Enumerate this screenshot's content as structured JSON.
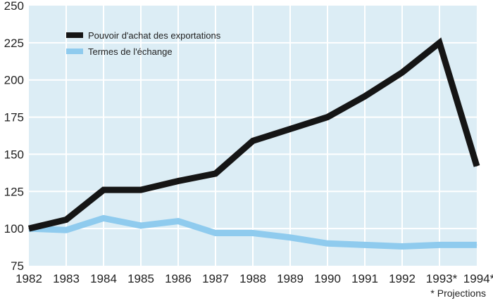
{
  "chart_data": {
    "type": "line",
    "title": "",
    "xlabel": "",
    "ylabel": "",
    "x": [
      "1982",
      "1983",
      "1984",
      "1985",
      "1986",
      "1987",
      "1988",
      "1989",
      "1990",
      "1991",
      "1992",
      "1993*",
      "1994*"
    ],
    "ylim": [
      75,
      250
    ],
    "yticks": [
      75,
      100,
      125,
      150,
      175,
      200,
      225,
      250
    ],
    "grid": true,
    "legend_position": "top-left",
    "series": [
      {
        "name": "Pouvoir d'achat des exportations",
        "color": "#151515",
        "values": [
          100,
          106,
          126,
          126,
          132,
          137,
          159,
          167,
          175,
          189,
          205,
          225,
          142
        ]
      },
      {
        "name": "Termes de l'échange",
        "color": "#8fcbee",
        "values": [
          100,
          99,
          107,
          102,
          105,
          97,
          97,
          94,
          90,
          89,
          88,
          89,
          89
        ]
      }
    ],
    "annotations": [
      "* Projections"
    ],
    "colors": {
      "plot_bg": "#dcedf5",
      "grid": "#ffffff"
    }
  }
}
